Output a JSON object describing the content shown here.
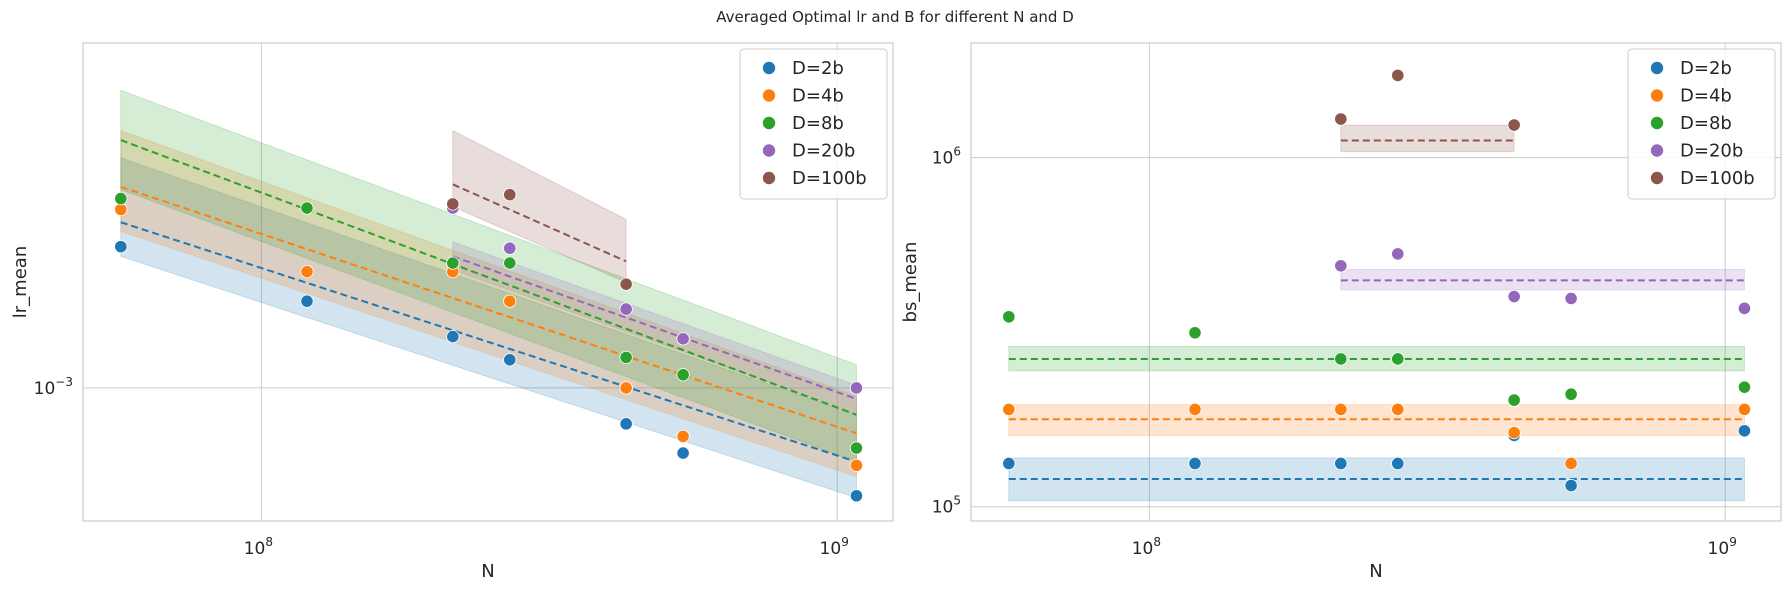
{
  "chart_data": {
    "suptitle": "Averaged Optimal lr and B for different N and D",
    "series_names": [
      "D=2b",
      "D=4b",
      "D=8b",
      "D=20b",
      "D=100b"
    ],
    "colors": [
      "#1f77b4",
      "#ff7f0e",
      "#2ca02c",
      "#9467bd",
      "#8c564b"
    ],
    "charts": [
      {
        "type": "scatter",
        "xlabel": "N",
        "ylabel": "lr_mean",
        "xscale": "log",
        "yscale": "log",
        "xlim": [
          49000000,
          1250000000
        ],
        "ylim": [
          0.00061,
          0.0036
        ],
        "xticks": [
          {
            "value": 100000000,
            "base": "10",
            "exp": "8"
          },
          {
            "value": 1000000000,
            "base": "10",
            "exp": "9"
          }
        ],
        "yticks": [
          {
            "value": 0.001,
            "base": "10",
            "exp": "−3"
          }
        ],
        "legend_location": "upper right",
        "series": [
          {
            "name": "D=2b",
            "points": [
              [
                57000000,
                0.00169
              ],
              [
                120000000,
                0.00138
              ],
              [
                215000000,
                0.00121
              ],
              [
                270000000,
                0.00111
              ],
              [
                430000000,
                0.000875
              ],
              [
                540000000,
                0.000785
              ],
              [
                1080000000,
                0.00067
              ]
            ],
            "fit": {
              "x": [
                57000000,
                1080000000
              ],
              "y": [
                0.00185,
                0.00076
              ]
            },
            "band": {
              "x": [
                57000000,
                1080000000
              ],
              "lower": [
                0.00163,
                0.000665
              ],
              "upper": [
                0.00235,
                0.000905
              ]
            }
          },
          {
            "name": "D=4b",
            "points": [
              [
                57000000,
                0.00194
              ],
              [
                120000000,
                0.00154
              ],
              [
                215000000,
                0.00154
              ],
              [
                270000000,
                0.00138
              ],
              [
                430000000,
                0.001
              ],
              [
                540000000,
                0.000835
              ],
              [
                1080000000,
                0.00075
              ]
            ],
            "fit": {
              "x": [
                57000000,
                1080000000
              ],
              "y": [
                0.00211,
                0.000845
              ]
            },
            "band": {
              "x": [
                57000000,
                1080000000
              ],
              "lower": [
                0.00179,
                0.00072
              ],
              "upper": [
                0.0026,
                0.00097
              ]
            }
          },
          {
            "name": "D=8b",
            "points": [
              [
                57000000,
                0.00202
              ],
              [
                120000000,
                0.00195
              ],
              [
                215000000,
                0.00159
              ],
              [
                270000000,
                0.00159
              ],
              [
                430000000,
                0.00112
              ],
              [
                540000000,
                0.00105
              ],
              [
                1080000000,
                0.0008
              ]
            ],
            "fit": {
              "x": [
                57000000,
                1080000000
              ],
              "y": [
                0.00251,
                0.000905
              ]
            },
            "band": {
              "x": [
                57000000,
                1080000000
              ],
              "lower": [
                0.00209,
                0.00076
              ],
              "upper": [
                0.00302,
                0.00109
              ]
            }
          },
          {
            "name": "D=20b",
            "points": [
              [
                215000000,
                0.00195
              ],
              [
                270000000,
                0.00168
              ],
              [
                430000000,
                0.00134
              ],
              [
                540000000,
                0.0012
              ],
              [
                1080000000,
                0.001
              ]
            ],
            "fit": {
              "x": [
                215000000,
                1080000000
              ],
              "y": [
                0.00163,
                0.00096
              ]
            },
            "band": {
              "x": [
                215000000,
                1080000000
              ],
              "lower": [
                0.00155,
                0.00091
              ],
              "upper": [
                0.00172,
                0.00101
              ]
            }
          },
          {
            "name": "D=100b",
            "points": [
              [
                215000000,
                0.00198
              ],
              [
                270000000,
                0.00205
              ],
              [
                430000000,
                0.00147
              ]
            ],
            "fit": {
              "x": [
                215000000,
                430000000
              ],
              "y": [
                0.00213,
                0.0016
              ]
            },
            "band": {
              "x": [
                215000000,
                430000000
              ],
              "lower": [
                0.00196,
                0.00148
              ],
              "upper": [
                0.0026,
                0.00187
              ]
            }
          }
        ]
      },
      {
        "type": "scatter",
        "xlabel": "N",
        "ylabel": "bs_mean",
        "xscale": "log",
        "yscale": "log",
        "xlim": [
          49000000,
          1250000000
        ],
        "ylim": [
          91000,
          2130000
        ],
        "xticks": [
          {
            "value": 100000000,
            "base": "10",
            "exp": "8"
          },
          {
            "value": 1000000000,
            "base": "10",
            "exp": "9"
          }
        ],
        "yticks": [
          {
            "value": 100000,
            "base": "10",
            "exp": "5"
          },
          {
            "value": 1000000,
            "base": "10",
            "exp": "6"
          }
        ],
        "legend_location": "upper right",
        "series": [
          {
            "name": "D=2b",
            "points": [
              [
                57000000,
                133000
              ],
              [
                120000000,
                133000
              ],
              [
                215000000,
                133000
              ],
              [
                270000000,
                133000
              ],
              [
                430000000,
                160000
              ],
              [
                540000000,
                115000
              ],
              [
                1080000000,
                165000
              ]
            ],
            "fit": {
              "x": [
                57000000,
                1080000000
              ],
              "y": [
                120000,
                120000
              ]
            },
            "band": {
              "x": [
                57000000,
                1080000000
              ],
              "lower": [
                104000,
                104000
              ],
              "upper": [
                138000,
                138000
              ]
            }
          },
          {
            "name": "D=4b",
            "points": [
              [
                57000000,
                190000
              ],
              [
                120000000,
                190000
              ],
              [
                215000000,
                190000
              ],
              [
                270000000,
                190000
              ],
              [
                430000000,
                163000
              ],
              [
                540000000,
                133000
              ],
              [
                1080000000,
                190000
              ]
            ],
            "fit": {
              "x": [
                57000000,
                1080000000
              ],
              "y": [
                178000,
                178000
              ]
            },
            "band": {
              "x": [
                57000000,
                1080000000
              ],
              "lower": [
                160000,
                160000
              ],
              "upper": [
                196000,
                196000
              ]
            }
          },
          {
            "name": "D=8b",
            "points": [
              [
                57000000,
                350000
              ],
              [
                120000000,
                315000
              ],
              [
                215000000,
                265000
              ],
              [
                270000000,
                265000
              ],
              [
                430000000,
                202000
              ],
              [
                540000000,
                210000
              ],
              [
                1080000000,
                220000
              ]
            ],
            "fit": {
              "x": [
                57000000,
                1080000000
              ],
              "y": [
                265000,
                265000
              ]
            },
            "band": {
              "x": [
                57000000,
                1080000000
              ],
              "lower": [
                245000,
                245000
              ],
              "upper": [
                288000,
                288000
              ]
            }
          },
          {
            "name": "D=20b",
            "points": [
              [
                215000000,
                490000
              ],
              [
                270000000,
                530000
              ],
              [
                430000000,
                400000
              ],
              [
                540000000,
                395000
              ],
              [
                1080000000,
                370000
              ]
            ],
            "fit": {
              "x": [
                215000000,
                1080000000
              ],
              "y": [
                445000,
                445000
              ]
            },
            "band": {
              "x": [
                215000000,
                1080000000
              ],
              "lower": [
                418000,
                418000
              ],
              "upper": [
                478000,
                478000
              ]
            }
          },
          {
            "name": "D=100b",
            "points": [
              [
                215000000,
                1290000
              ],
              [
                270000000,
                1720000
              ],
              [
                430000000,
                1240000
              ]
            ],
            "fit": {
              "x": [
                215000000,
                430000000
              ],
              "y": [
                1120000,
                1120000
              ]
            },
            "band": {
              "x": [
                215000000,
                430000000
              ],
              "lower": [
                1040000,
                1040000
              ],
              "upper": [
                1240000,
                1240000
              ]
            }
          }
        ]
      }
    ]
  }
}
